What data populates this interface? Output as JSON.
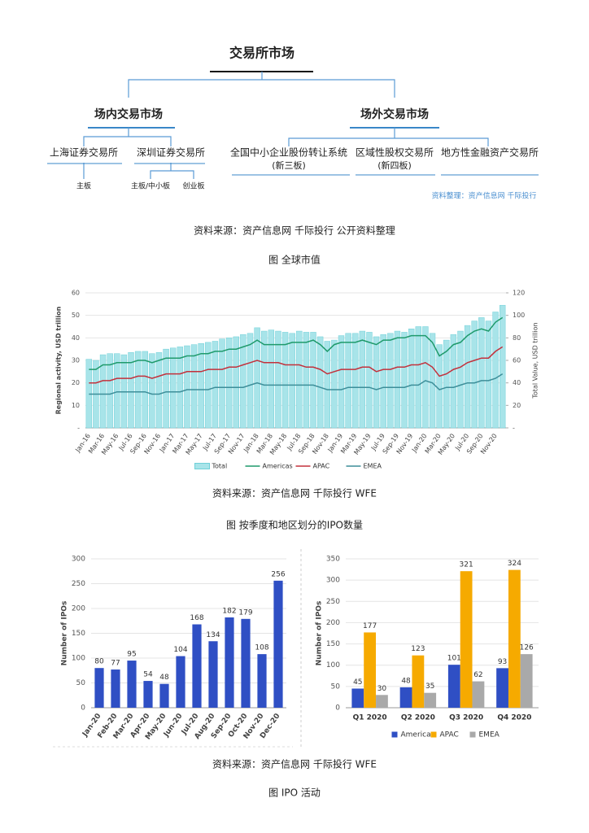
{
  "diagram": {
    "root": "交易所市场",
    "onsite": "场内交易市场",
    "offsite": "场外交易市场",
    "shanghai": "上海证券交易所",
    "shenzhen": "深圳证券交易所",
    "sh_board": "主板",
    "sz_board": "主板/中小板",
    "sz_gem": "创业板",
    "neeq": "全国中小企业股份转让系统",
    "neeq_note": "(新三板)",
    "regional": "区域性股权交易所",
    "regional_note": "(新四板)",
    "local": "地方性金融资产交易所",
    "credit": "资料整理：资产信息网 千际投行"
  },
  "captions": [
    "资料来源：资产信息网 千际投行 公开资料整理",
    "图 全球市值",
    "资料来源：资产信息网 千际投行 WFE",
    "图 按季度和地区划分的IPO数量",
    "资料来源：资产信息网 千际投行 WFE",
    "图 IPO 活动"
  ],
  "chart_data": [
    {
      "type": "bar-line",
      "categories": [
        "Jan-16",
        null,
        "Mar-16",
        null,
        "May-16",
        null,
        "Jul-16",
        null,
        "Sep-16",
        null,
        "Nov-16",
        null,
        "Jan-17",
        null,
        "Mar-17",
        null,
        "May-17",
        null,
        "Jul-17",
        null,
        "Sep-17",
        null,
        "Nov-17",
        null,
        "Jan-18",
        null,
        "Mar-18",
        null,
        "May-18",
        null,
        "Jul-18",
        null,
        "Sep-18",
        null,
        "Nov-18",
        null,
        "Jan-19",
        null,
        "Mar-19",
        null,
        "May-19",
        null,
        "Jul-19",
        null,
        "Sep-19",
        null,
        "Nov-19",
        null,
        "Jan-20",
        null,
        "Mar-20",
        null,
        "May-20",
        null,
        "Jul-20",
        null,
        "Sep-20",
        null,
        "Nov-20",
        null
      ],
      "series": [
        {
          "name": "Total",
          "type": "bar",
          "axis": "y2",
          "color": "#a8e4e9",
          "values": [
            61,
            60,
            65,
            66,
            66,
            65,
            67,
            68,
            68,
            66,
            67,
            70,
            71,
            72,
            73,
            74,
            75,
            76,
            77,
            79,
            80,
            81,
            83,
            84,
            89,
            86,
            87,
            86,
            85,
            84,
            86,
            85,
            85,
            81,
            77,
            78,
            82,
            84,
            84,
            86,
            85,
            81,
            83,
            84,
            86,
            85,
            88,
            90,
            90,
            84,
            74,
            78,
            83,
            86,
            91,
            95,
            98,
            95,
            103,
            109
          ]
        },
        {
          "name": "Americas",
          "type": "line",
          "color": "#1f9a6b",
          "values": [
            26,
            26,
            28,
            28,
            29,
            29,
            29,
            30,
            30,
            29,
            30,
            31,
            31,
            31,
            32,
            32,
            33,
            33,
            34,
            34,
            35,
            35,
            36,
            37,
            39,
            37,
            37,
            37,
            37,
            38,
            38,
            38,
            39,
            37,
            34,
            37,
            38,
            38,
            38,
            39,
            38,
            37,
            39,
            39,
            40,
            40,
            41,
            41,
            41,
            38,
            32,
            34,
            37,
            38,
            41,
            43,
            44,
            43,
            47,
            49
          ]
        },
        {
          "name": "APAC",
          "type": "line",
          "color": "#c3303b",
          "values": [
            20,
            20,
            21,
            21,
            22,
            22,
            22,
            23,
            23,
            22,
            23,
            24,
            24,
            24,
            25,
            25,
            25,
            26,
            26,
            26,
            27,
            27,
            28,
            29,
            30,
            29,
            29,
            29,
            28,
            28,
            28,
            27,
            27,
            26,
            24,
            25,
            26,
            26,
            26,
            27,
            27,
            25,
            26,
            26,
            27,
            27,
            28,
            28,
            29,
            27,
            23,
            24,
            26,
            27,
            29,
            30,
            31,
            31,
            34,
            36
          ]
        },
        {
          "name": "EMEA",
          "type": "line",
          "color": "#3d8e99",
          "values": [
            15,
            15,
            15,
            15,
            16,
            16,
            16,
            16,
            16,
            15,
            15,
            16,
            16,
            16,
            17,
            17,
            17,
            17,
            18,
            18,
            18,
            18,
            18,
            19,
            20,
            19,
            19,
            19,
            19,
            19,
            19,
            19,
            19,
            18,
            17,
            17,
            17,
            18,
            18,
            18,
            18,
            17,
            18,
            18,
            18,
            18,
            19,
            19,
            21,
            20,
            17,
            18,
            18,
            19,
            20,
            20,
            21,
            21,
            22,
            24
          ]
        }
      ],
      "ylabel": "Regional activity, USD trillion",
      "y2label": "Total Value, USD trillion",
      "ylim": [
        0,
        60
      ],
      "yticks": [
        {
          "value": 0,
          "label": "-"
        },
        10,
        20,
        30,
        40,
        50,
        60
      ],
      "y2lim": [
        0,
        120
      ],
      "y2ticks": [
        {
          "value": 0,
          "label": "-"
        },
        20,
        40,
        60,
        80,
        100,
        120
      ],
      "grid": true,
      "legend": "bottom"
    },
    {
      "type": "bar",
      "categories": [
        "Jan-20",
        "Feb-20",
        "Mar-20",
        "Apr-20",
        "May-20",
        "Jun-20",
        "Jul-20",
        "Aug-20",
        "Sep-20",
        "Oct-20",
        "Nov-20",
        "Dec-20"
      ],
      "values": [
        80,
        77,
        95,
        54,
        48,
        104,
        168,
        134,
        182,
        179,
        108,
        256
      ],
      "color": "#2f4fc4",
      "ylabel": "Number of IPOs",
      "ylim": [
        0,
        300
      ],
      "yticks": [
        0,
        50,
        100,
        150,
        200,
        250,
        300
      ],
      "grid": true,
      "data_labels": true
    },
    {
      "type": "grouped-bar",
      "categories": [
        "Q1 2020",
        "Q2 2020",
        "Q3 2020",
        "Q4 2020"
      ],
      "series": [
        {
          "name": "Americas",
          "color": "#2f4fc4",
          "values": [
            45,
            48,
            101,
            93
          ]
        },
        {
          "name": "APAC",
          "color": "#f6aa00",
          "values": [
            177,
            123,
            321,
            324
          ]
        },
        {
          "name": "EMEA",
          "color": "#a9a9a9",
          "values": [
            30,
            35,
            62,
            126
          ]
        }
      ],
      "ylabel": "Number of IPOs",
      "ylim": [
        0,
        350
      ],
      "yticks": [
        0,
        50,
        100,
        150,
        200,
        250,
        300,
        350
      ],
      "grid": true,
      "legend": "bottom",
      "data_labels": true
    }
  ]
}
